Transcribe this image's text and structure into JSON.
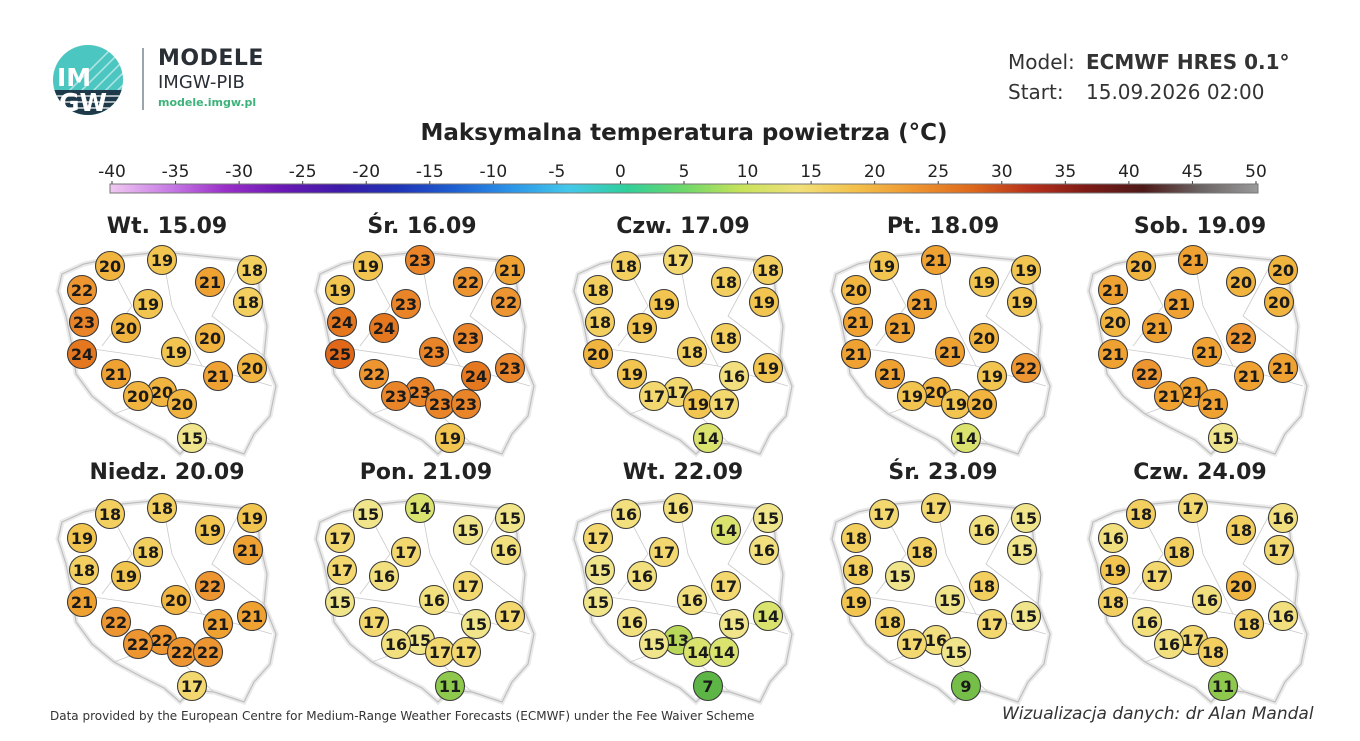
{
  "header": {
    "brand_title": "MODELE",
    "brand_sub": "IMGW-PIB",
    "brand_url": "modele.imgw.pl",
    "logo_text_top": "IM",
    "logo_text_bottom": "GW",
    "model_label": "Model:",
    "model_value": "ECMWF HRES 0.1°",
    "start_label": "Start:",
    "start_value": "15.09.2026 02:00"
  },
  "title": "Maksymalna temperatura powietrza (°C)",
  "scale": {
    "ticks": [
      "-40",
      "-35",
      "-30",
      "-25",
      "-20",
      "-15",
      "-10",
      "-5",
      "0",
      "5",
      "10",
      "15",
      "20",
      "25",
      "30",
      "35",
      "40",
      "45",
      "50"
    ],
    "colors": [
      "#f1c9f1",
      "#c97ee6",
      "#9a2fc8",
      "#6a18b4",
      "#3d1aa8",
      "#1f33b6",
      "#1e5fd2",
      "#2c95e8",
      "#43c8ea",
      "#2fcf9a",
      "#6ed86a",
      "#c8e25a",
      "#f1e07a",
      "#f3c04a",
      "#ee9530",
      "#dd6a1c",
      "#b8321c",
      "#7e1a16",
      "#4d1a18",
      "#6b6464",
      "#9a9a9a"
    ]
  },
  "panels": [
    {
      "label": "Wt. 15.09",
      "values": [
        20,
        19,
        18,
        22,
        21,
        18,
        19,
        23,
        20,
        20,
        24,
        19,
        20,
        21,
        21,
        20,
        20,
        20,
        15
      ]
    },
    {
      "label": "Śr. 16.09",
      "values": [
        19,
        23,
        21,
        19,
        22,
        22,
        23,
        24,
        24,
        23,
        25,
        23,
        23,
        22,
        24,
        23,
        23,
        23,
        23,
        19
      ]
    },
    {
      "label": "Czw. 17.09",
      "values": [
        18,
        17,
        18,
        18,
        18,
        19,
        19,
        18,
        19,
        18,
        20,
        18,
        19,
        19,
        16,
        17,
        17,
        19,
        17,
        14
      ]
    },
    {
      "label": "Pt. 18.09",
      "values": [
        19,
        21,
        19,
        20,
        19,
        19,
        21,
        21,
        21,
        20,
        21,
        21,
        22,
        21,
        19,
        20,
        19,
        19,
        20,
        14
      ]
    },
    {
      "label": "Sob. 19.09",
      "values": [
        20,
        21,
        20,
        21,
        20,
        20,
        21,
        20,
        21,
        22,
        21,
        21,
        21,
        22,
        21,
        21,
        21,
        21,
        15
      ]
    },
    {
      "label": "Niedz. 20.09",
      "values": [
        18,
        18,
        19,
        19,
        19,
        21,
        18,
        18,
        19,
        22,
        21,
        20,
        21,
        22,
        21,
        22,
        22,
        22,
        22,
        17
      ]
    },
    {
      "label": "Pon. 21.09",
      "values": [
        15,
        14,
        15,
        17,
        15,
        16,
        17,
        17,
        16,
        17,
        15,
        16,
        17,
        17,
        15,
        15,
        16,
        17,
        17,
        11
      ]
    },
    {
      "label": "Wt. 22.09",
      "values": [
        16,
        16,
        15,
        17,
        14,
        16,
        17,
        15,
        16,
        17,
        15,
        16,
        14,
        16,
        15,
        13,
        15,
        14,
        14,
        7
      ]
    },
    {
      "label": "Śr. 23.09",
      "values": [
        17,
        17,
        15,
        18,
        16,
        15,
        18,
        18,
        15,
        18,
        19,
        15,
        15,
        18,
        17,
        16,
        17,
        15,
        9
      ]
    },
    {
      "label": "Czw. 24.09",
      "values": [
        18,
        17,
        16,
        16,
        18,
        17,
        18,
        19,
        17,
        20,
        18,
        16,
        16,
        16,
        18,
        17,
        16,
        18,
        11
      ]
    }
  ],
  "footer": {
    "left": "Data provided by the European Centre for Medium-Range Weather Forecasts (ECMWF) under the Fee Waiver Scheme",
    "right": "Wizualizacja danych: dr Alan Mandal"
  }
}
